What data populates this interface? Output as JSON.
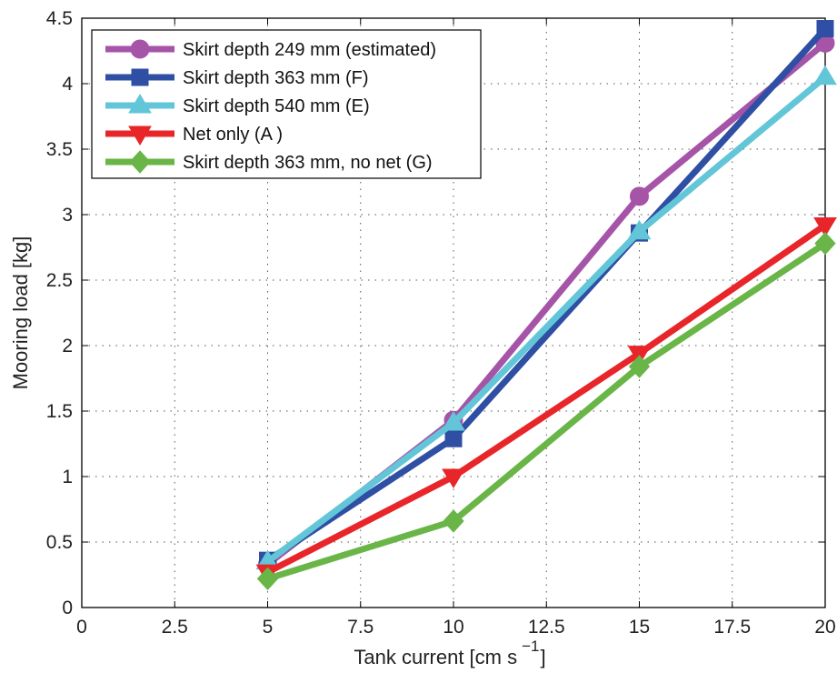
{
  "chart_data": {
    "type": "line",
    "xlabel": "Tank current [cm s",
    "xlabel_superscript": "−1",
    "xlabel_close": "]",
    "ylabel": "Mooring load [kg]",
    "xlim": [
      0,
      20
    ],
    "ylim": [
      0,
      4.5
    ],
    "xticks": [
      "0",
      "2.5",
      "5",
      "7.5",
      "10",
      "12.5",
      "15",
      "17.5",
      "20"
    ],
    "yticks": [
      "0",
      "0.5",
      "1",
      "1.5",
      "2",
      "2.5",
      "3",
      "3.5",
      "4",
      "4.5"
    ],
    "grid": true,
    "legend_position": "top-left",
    "x": [
      5,
      10,
      15,
      20
    ],
    "series": [
      {
        "name": "Skirt depth 249 mm (estimated)",
        "values": [
          0.33,
          1.43,
          3.14,
          4.31
        ],
        "color": "#a554a8",
        "marker": "circle"
      },
      {
        "name": "Skirt depth 363 mm (F)",
        "values": [
          0.36,
          1.29,
          2.86,
          4.42
        ],
        "color": "#2e4fa3",
        "marker": "square"
      },
      {
        "name": "Skirt depth 540 mm (E)",
        "values": [
          0.35,
          1.41,
          2.87,
          4.05
        ],
        "color": "#62c6d8",
        "marker": "triangle-up"
      },
      {
        "name": "Net only (A )",
        "values": [
          0.27,
          1.0,
          1.94,
          2.92
        ],
        "color": "#e8262a",
        "marker": "triangle-down"
      },
      {
        "name": "Skirt depth 363 mm, no net (G)",
        "values": [
          0.22,
          0.66,
          1.84,
          2.78
        ],
        "color": "#6ab547",
        "marker": "diamond"
      }
    ]
  }
}
